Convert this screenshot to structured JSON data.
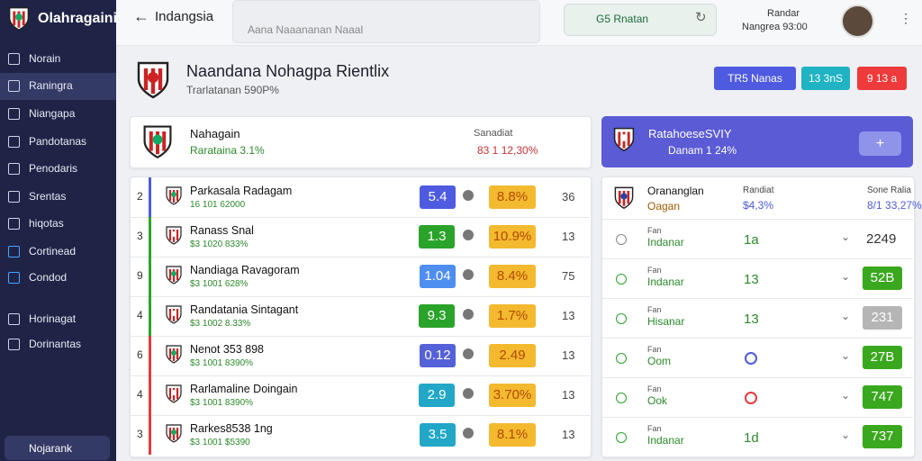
{
  "sidebar": {
    "brand": "Olahragaini",
    "items": [
      "Norain",
      "Raningra",
      "Niangapa",
      "Pandotanas",
      "Penodaris",
      "Srentas",
      "hiqotas",
      "Cortinead",
      "Condod",
      "Horinagat",
      "Dorinantas"
    ],
    "active": 1,
    "footer": "Nojarank"
  },
  "topbar": {
    "title": "Indangsia",
    "search": "Aana Naaananan Naaal",
    "pill": "G5 Rnatan",
    "user_name": "Randar",
    "user_sub": "Nangrea 93:00"
  },
  "header": {
    "title": "Naandana Nohagpa Rientlix",
    "subtitle": "Trarlatanan 590P%",
    "buttons": [
      "TR5 Nanas",
      "13 3nS",
      "9 13 a"
    ]
  },
  "summary": {
    "name": "Nahagain",
    "stat": "Rarataina 3.1%",
    "label": "Sanadiat",
    "value": "83 1 12,30%"
  },
  "highlight": {
    "name": "RatahoeseSVIY",
    "stat": "Danam 1 24%"
  },
  "rows": [
    {
      "rank": "2",
      "name": "Parkasala Radagam",
      "sub": "16 101 62000",
      "score": "5.4",
      "pct": "8.8%",
      "last": "36"
    },
    {
      "rank": "3",
      "name": "Ranass Snal",
      "sub": "$3 1020 833%",
      "score": "1.3",
      "pct": "10.9%",
      "last": "13"
    },
    {
      "rank": "9",
      "name": "Nandiaga Ravagoram",
      "sub": "$3 1001 628%",
      "score": "1.04",
      "pct": "8.4%",
      "last": "75"
    },
    {
      "rank": "4",
      "name": "Randatania Sintagant",
      "sub": "$3 1002 8.33%",
      "score": "9.3",
      "pct": "1.7%",
      "last": "13"
    },
    {
      "rank": "6",
      "name": "Nenot 353 898",
      "sub": "$3 1001 8390%",
      "score": "0.12",
      "pct": "2.49",
      "last": "13"
    },
    {
      "rank": "4",
      "name": "Rarlamaline Doingain",
      "sub": "$3 1001 8390%",
      "score": "2.9",
      "pct": "3.70%",
      "last": "13"
    },
    {
      "rank": "3",
      "name": "Rarkes8538 1ng",
      "sub": "$3 1001 $5390",
      "score": "3.5",
      "pct": "8.1%",
      "last": "13"
    }
  ],
  "side_table": {
    "head": {
      "name": "Orananglan",
      "sub": "Oagan",
      "col1": "Randiat",
      "col1_sub": "$4,3%",
      "col2": "Sone Ralia",
      "col2_sub": "8/1 33,27%"
    },
    "rows": [
      {
        "label": "Fan",
        "name": "Indanar",
        "mid": "1a",
        "value": "2249"
      },
      {
        "label": "Fan",
        "name": "Indanar",
        "mid": "13",
        "value": "52B"
      },
      {
        "label": "Fan",
        "name": "Hisanar",
        "mid": "13",
        "value": "231"
      },
      {
        "label": "Fan",
        "name": "Oom",
        "mid": null,
        "value": "27B"
      },
      {
        "label": "Fan",
        "name": "Ook",
        "mid": null,
        "value": "747"
      },
      {
        "label": "Fan",
        "name": "Indanar",
        "mid": "1d",
        "value": "737"
      }
    ]
  }
}
